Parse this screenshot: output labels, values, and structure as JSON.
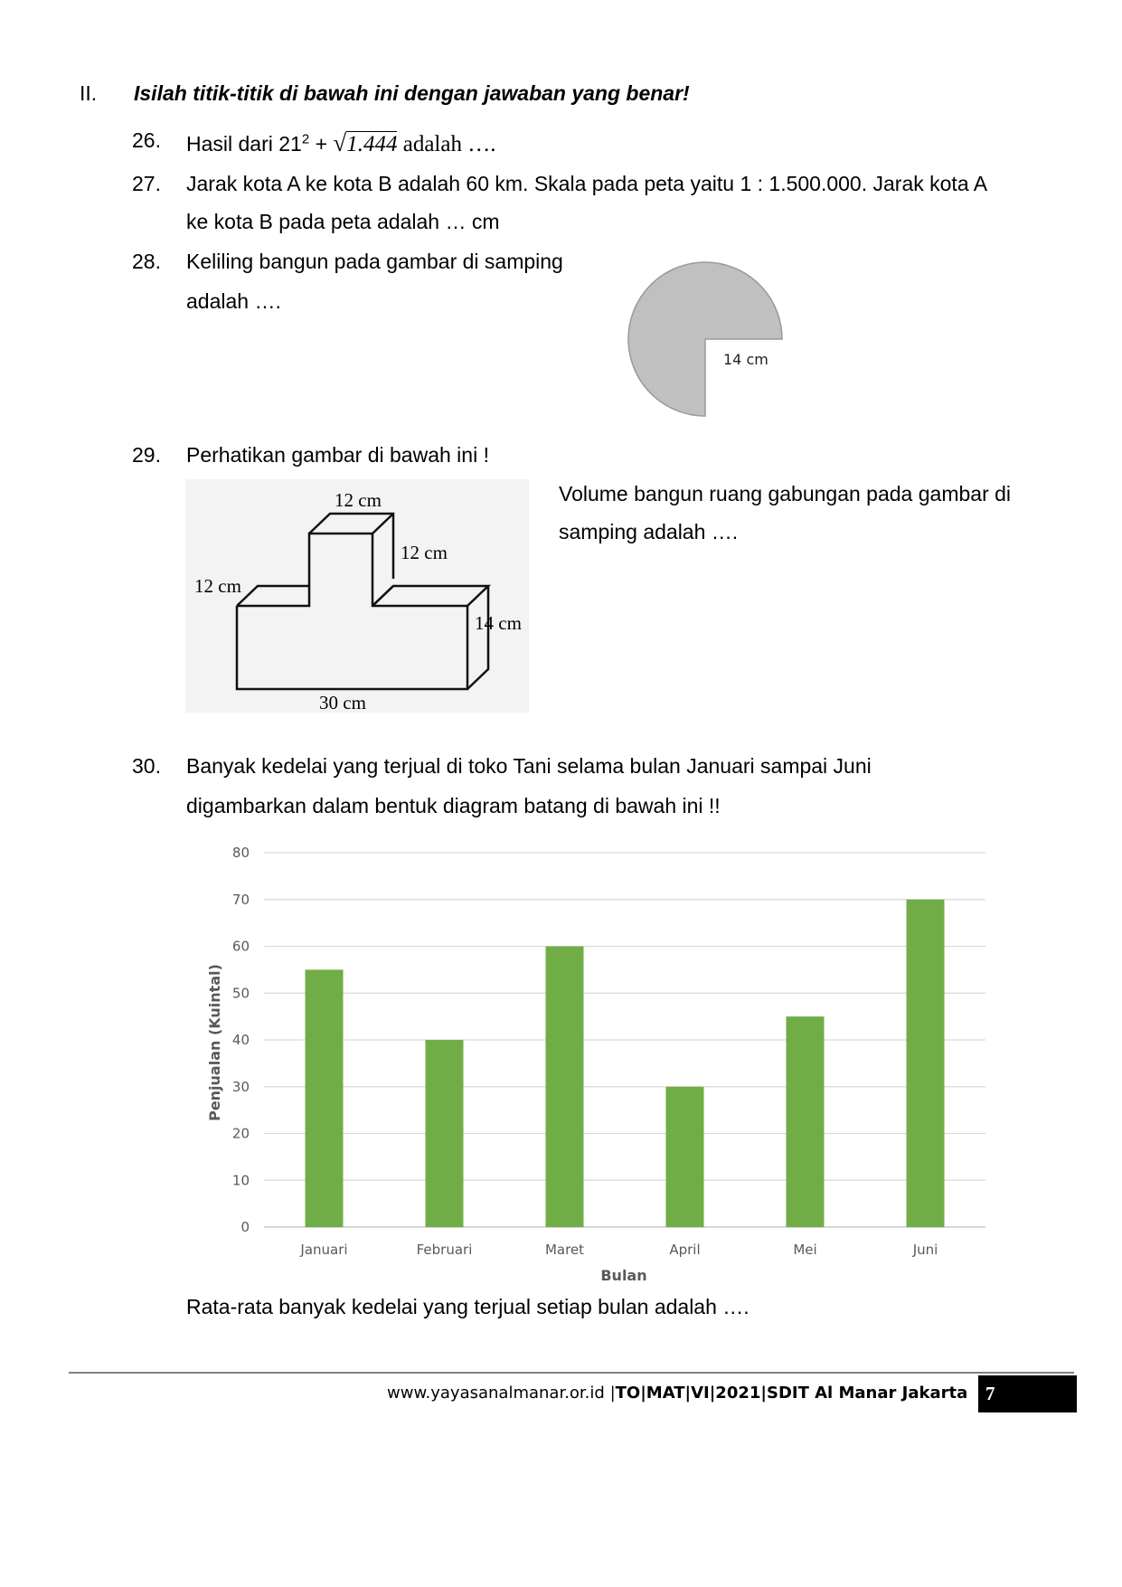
{
  "section": {
    "number": "II.",
    "instruction": "Isilah titik-titik di bawah ini dengan jawaban yang benar!"
  },
  "q26": {
    "num": "26.",
    "pre": "Hasil dari 21",
    "exp": "2",
    "plus": " + ",
    "sqrt_value": "1.444",
    "post": " adalah …."
  },
  "q27": {
    "num": "27.",
    "line1": "Jarak kota A ke kota B adalah 60 km. Skala pada peta yaitu 1 : 1.500.000. Jarak kota A",
    "line2": "ke kota B pada peta adalah … cm"
  },
  "q28": {
    "num": "28.",
    "line1": "Keliling bangun pada gambar di samping",
    "line2": "adalah ….",
    "figure_label": "14 cm"
  },
  "q29": {
    "num": "29.",
    "line1": "Perhatikan gambar di bawah ini !",
    "side_line1": "Volume bangun ruang gabungan pada gambar di",
    "side_line2": "samping adalah ….",
    "labels": {
      "top_width": "12 cm",
      "top_depth": "12 cm",
      "left_depth": "12 cm",
      "height": "14 cm",
      "bottom_length": "30 cm"
    }
  },
  "q30": {
    "num": "30.",
    "line1": "Banyak kedelai yang terjual di toko Tani selama bulan Januari sampai Juni",
    "line2": "digambarkan dalam bentuk diagram batang di bawah ini !!",
    "question": "Rata-rata banyak kedelai yang terjual setiap bulan adalah …."
  },
  "chart_data": {
    "type": "bar",
    "categories": [
      "Januari",
      "Februari",
      "Maret",
      "April",
      "Mei",
      "Juni"
    ],
    "values": [
      55,
      40,
      60,
      30,
      45,
      70
    ],
    "title": "",
    "xlabel": "Bulan",
    "ylabel": "Penjualan (Kuintal)",
    "ylim": [
      0,
      80
    ],
    "yticks": [
      0,
      10,
      20,
      30,
      40,
      50,
      60,
      70,
      80
    ],
    "bar_color": "#70ad47",
    "grid": true,
    "legend": "none"
  },
  "footer": {
    "website": "www.yayasanalmanar.or.id",
    "separator": "|",
    "code": "TO|MAT|VI|2021|SDIT Al Manar Jakarta",
    "page": "7"
  }
}
